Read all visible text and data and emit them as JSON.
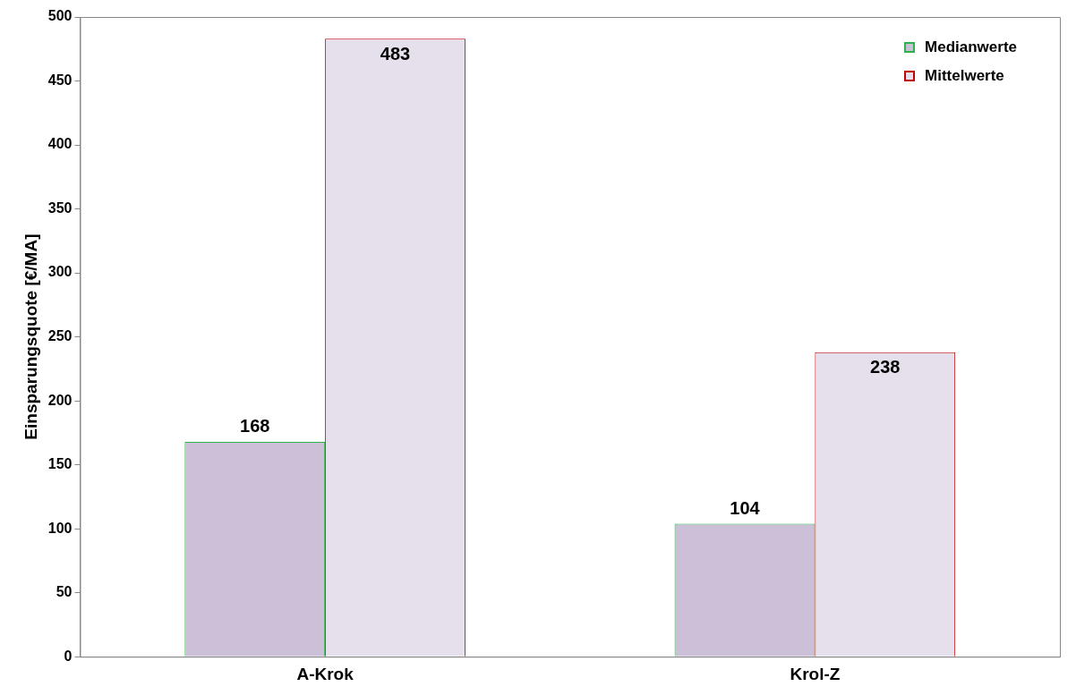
{
  "chart_data": {
    "type": "bar",
    "ylabel": "Einsparungsquote [€/MA]",
    "categories": [
      "A-Krok",
      "Krol-Z"
    ],
    "series": [
      {
        "name": "Medianwerte",
        "color": "#cbc0d8",
        "values": [
          168,
          104
        ]
      },
      {
        "name": "Mittelwerte",
        "color": "#e6dfec",
        "values": [
          483,
          238
        ]
      }
    ],
    "ylim": [
      0,
      500
    ],
    "yticks": [
      0,
      50,
      100,
      150,
      200,
      250,
      300,
      350,
      400,
      450,
      500
    ],
    "data_labels": true,
    "grid": false,
    "legend": "top right"
  }
}
